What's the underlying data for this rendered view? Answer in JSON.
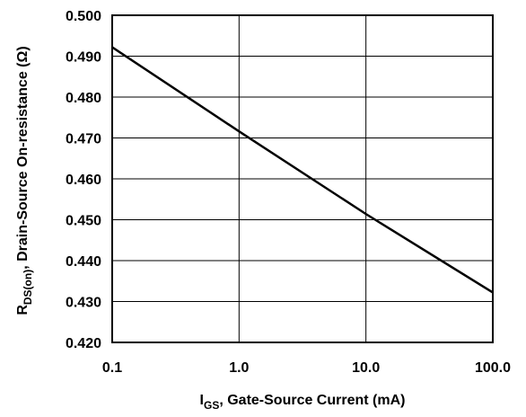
{
  "chart_data": {
    "type": "line",
    "x_scale": "log",
    "xlim": [
      0.1,
      100.0
    ],
    "ylim": [
      0.42,
      0.5
    ],
    "grid": true,
    "x_ticks": [
      0.1,
      1.0,
      10.0,
      100.0
    ],
    "x_tick_labels": [
      "0.1",
      "1.0",
      "10.0",
      "100.0"
    ],
    "y_ticks": [
      0.42,
      0.43,
      0.44,
      0.45,
      0.46,
      0.47,
      0.48,
      0.49,
      0.5
    ],
    "y_tick_labels": [
      "0.420",
      "0.430",
      "0.440",
      "0.450",
      "0.460",
      "0.470",
      "0.480",
      "0.490",
      "0.500"
    ],
    "xlabel": {
      "main": "I",
      "sub": "GS",
      "rest": ", Gate-Source Current (mA)"
    },
    "ylabel": {
      "main": "R",
      "sub": "DS(on)",
      "rest": ", Drain-Source On-resistance (Ω)"
    },
    "series": [
      {
        "x": [
          0.1,
          1.0,
          10.0,
          100.0
        ],
        "y": [
          0.4922,
          0.4716,
          0.4514,
          0.4322
        ]
      }
    ]
  }
}
